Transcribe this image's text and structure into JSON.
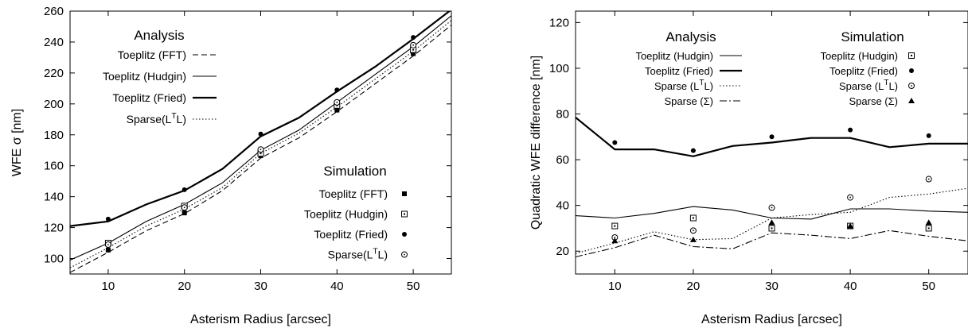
{
  "chart_data": [
    {
      "type": "line",
      "xlabel": "Asterism Radius [arcsec]",
      "ylabel": "WFE σ [nm]",
      "xlim": [
        5,
        55
      ],
      "ylim": [
        90,
        260
      ],
      "xticks": [
        10,
        20,
        30,
        40,
        50
      ],
      "yticks": [
        100,
        120,
        140,
        160,
        180,
        200,
        220,
        240,
        260
      ],
      "grid": false,
      "legend_groups": {
        "analysis": {
          "title": "Analysis",
          "placement": "top-left"
        },
        "simulation": {
          "title": "Simulation",
          "placement": "bottom-right"
        }
      },
      "analysis_series": [
        {
          "name": "Toeplitz (FFT)",
          "style": "dashed",
          "x": [
            5,
            10,
            15,
            20,
            25,
            30,
            35,
            40,
            45,
            50,
            55
          ],
          "values": [
            91,
            104,
            118,
            129,
            144,
            165,
            178,
            195,
            213,
            231,
            251
          ]
        },
        {
          "name": "Toeplitz (Hudgin)",
          "style": "thin",
          "x": [
            5,
            10,
            15,
            20,
            25,
            30,
            35,
            40,
            45,
            50,
            55
          ],
          "values": [
            99,
            110,
            124,
            135,
            149,
            170,
            183,
            201,
            219,
            237,
            257
          ]
        },
        {
          "name": "Toeplitz (Fried)",
          "style": "thick",
          "x": [
            5,
            10,
            15,
            20,
            25,
            30,
            35,
            40,
            45,
            50,
            55
          ],
          "values": [
            121,
            124,
            135,
            144,
            158,
            179,
            191,
            208,
            224,
            242,
            261
          ]
        },
        {
          "name": "Sparse(L^TL)",
          "style": "dotted",
          "x": [
            5,
            10,
            15,
            20,
            25,
            30,
            35,
            40,
            45,
            50,
            55
          ],
          "values": [
            94,
            107,
            121,
            132,
            146,
            168,
            181,
            198,
            216,
            234,
            254
          ]
        }
      ],
      "simulation_series": [
        {
          "name": "Toeplitz (FFT)",
          "marker": "filled-square",
          "x": [
            10,
            20,
            30,
            40,
            50
          ],
          "values": [
            105.5,
            129.5,
            166.5,
            196,
            232.5
          ]
        },
        {
          "name": "Toeplitz (Hudgin)",
          "marker": "open-square",
          "x": [
            10,
            20,
            30,
            40,
            50
          ],
          "values": [
            110,
            134,
            168,
            199,
            235
          ]
        },
        {
          "name": "Toeplitz (Fried)",
          "marker": "filled-circle",
          "x": [
            10,
            20,
            30,
            40,
            50
          ],
          "values": [
            125.5,
            144.5,
            180.5,
            209,
            243
          ]
        },
        {
          "name": "Sparse(L^TL)",
          "marker": "open-circle",
          "x": [
            10,
            20,
            30,
            40,
            50
          ],
          "values": [
            109,
            133,
            170.5,
            201,
            238
          ]
        }
      ]
    },
    {
      "type": "line",
      "xlabel": "Asterism Radius [arcsec]",
      "ylabel": "Quadratic WFE difference [nm]",
      "xlim": [
        5,
        55
      ],
      "ylim": [
        10,
        125
      ],
      "xticks": [
        10,
        20,
        30,
        40,
        50
      ],
      "yticks": [
        20,
        40,
        60,
        80,
        100,
        120
      ],
      "grid": false,
      "legend_groups": {
        "analysis": {
          "title": "Analysis",
          "placement": "top-left"
        },
        "simulation": {
          "title": "Simulation",
          "placement": "top-right"
        }
      },
      "analysis_series": [
        {
          "name": "Toeplitz (Hudgin)",
          "style": "thin",
          "x": [
            5,
            10,
            15,
            20,
            25,
            30,
            35,
            40,
            45,
            50,
            55
          ],
          "values": [
            35.5,
            34.5,
            36.5,
            39.5,
            38,
            34.5,
            34,
            38.5,
            38.5,
            37.5,
            37
          ]
        },
        {
          "name": "Toeplitz (Fried)",
          "style": "thick",
          "x": [
            5,
            10,
            15,
            20,
            25,
            30,
            35,
            40,
            45,
            50,
            55
          ],
          "values": [
            78.5,
            64.5,
            64.5,
            61.5,
            66,
            67.5,
            69.5,
            69.5,
            65.5,
            67,
            67
          ]
        },
        {
          "name": "Sparse (L^TL)",
          "style": "dotted",
          "x": [
            5,
            10,
            15,
            20,
            25,
            30,
            35,
            40,
            45,
            50,
            55
          ],
          "values": [
            19,
            23.5,
            28.5,
            25,
            25.5,
            34.5,
            36,
            37,
            43.5,
            45,
            47.5
          ]
        },
        {
          "name": "Sparse (Σ)",
          "style": "dash-dot",
          "x": [
            5,
            10,
            15,
            20,
            25,
            30,
            35,
            40,
            45,
            50,
            55
          ],
          "values": [
            17.5,
            21.5,
            27,
            22,
            21,
            28,
            27,
            25.5,
            29,
            26.5,
            24.5
          ]
        }
      ],
      "simulation_series": [
        {
          "name": "Toeplitz (Hudgin)",
          "marker": "open-square",
          "x": [
            10,
            20,
            30,
            40,
            50
          ],
          "values": [
            31,
            34.5,
            30,
            31,
            30
          ]
        },
        {
          "name": "Toeplitz (Fried)",
          "marker": "filled-circle",
          "x": [
            10,
            20,
            30,
            40,
            50
          ],
          "values": [
            67.5,
            64,
            70,
            73,
            70.5
          ]
        },
        {
          "name": "Sparse (L^TL)",
          "marker": "open-circle",
          "x": [
            10,
            20,
            30,
            40,
            50
          ],
          "values": [
            26,
            29,
            39,
            43.5,
            51.5
          ]
        },
        {
          "name": "Sparse (Σ)",
          "marker": "filled-triangle",
          "x": [
            10,
            20,
            30,
            40,
            50
          ],
          "values": [
            24.5,
            25,
            32.5,
            31,
            32.5
          ]
        }
      ]
    }
  ]
}
